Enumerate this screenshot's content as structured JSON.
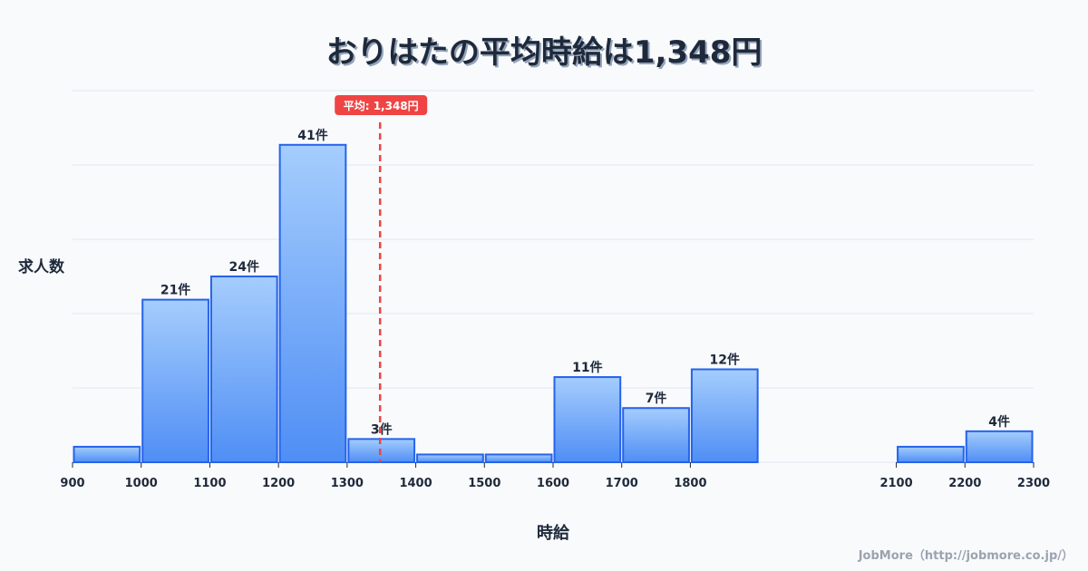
{
  "title": "おりはたの平均時給は1,348円",
  "credit": "JobMore（http://jobmore.co.jp/）",
  "colors": {
    "bar_fill_top": "#a5cdfd",
    "bar_fill_bottom": "#4f8ef5",
    "bar_stroke": "#2563eb",
    "avg_line": "#ef4444",
    "grid": "#e2e8f0",
    "background": "#f8fafc",
    "text": "#1e293b"
  },
  "chart_data": {
    "type": "bar",
    "subtype": "histogram",
    "title": "おりはたの平均時給は1,348円",
    "xlabel": "時給",
    "ylabel": "求人数",
    "bin_width": 100,
    "bins": [
      {
        "start": 900,
        "end": 1000,
        "count": 2,
        "label": ""
      },
      {
        "start": 1000,
        "end": 1100,
        "count": 21,
        "label": "21件"
      },
      {
        "start": 1100,
        "end": 1200,
        "count": 24,
        "label": "24件"
      },
      {
        "start": 1200,
        "end": 1300,
        "count": 41,
        "label": "41件"
      },
      {
        "start": 1300,
        "end": 1400,
        "count": 3,
        "label": "3件"
      },
      {
        "start": 1400,
        "end": 1500,
        "count": 1,
        "label": ""
      },
      {
        "start": 1500,
        "end": 1600,
        "count": 1,
        "label": ""
      },
      {
        "start": 1600,
        "end": 1700,
        "count": 11,
        "label": "11件"
      },
      {
        "start": 1700,
        "end": 1800,
        "count": 7,
        "label": "7件"
      },
      {
        "start": 1800,
        "end": 1900,
        "count": 12,
        "label": "12件"
      },
      {
        "start": 2100,
        "end": 2200,
        "count": 2,
        "label": ""
      },
      {
        "start": 2200,
        "end": 2300,
        "count": 4,
        "label": "4件"
      }
    ],
    "x_ticks": [
      "900",
      "1000",
      "1100",
      "1200",
      "1300",
      "1400",
      "1500",
      "1600",
      "1700",
      "1800",
      "2100",
      "2200",
      "2300"
    ],
    "x_range": [
      900,
      2300
    ],
    "ylim": [
      0,
      48
    ],
    "grid": true,
    "mean": {
      "value": 1348,
      "label": "平均: 1,348円"
    }
  }
}
